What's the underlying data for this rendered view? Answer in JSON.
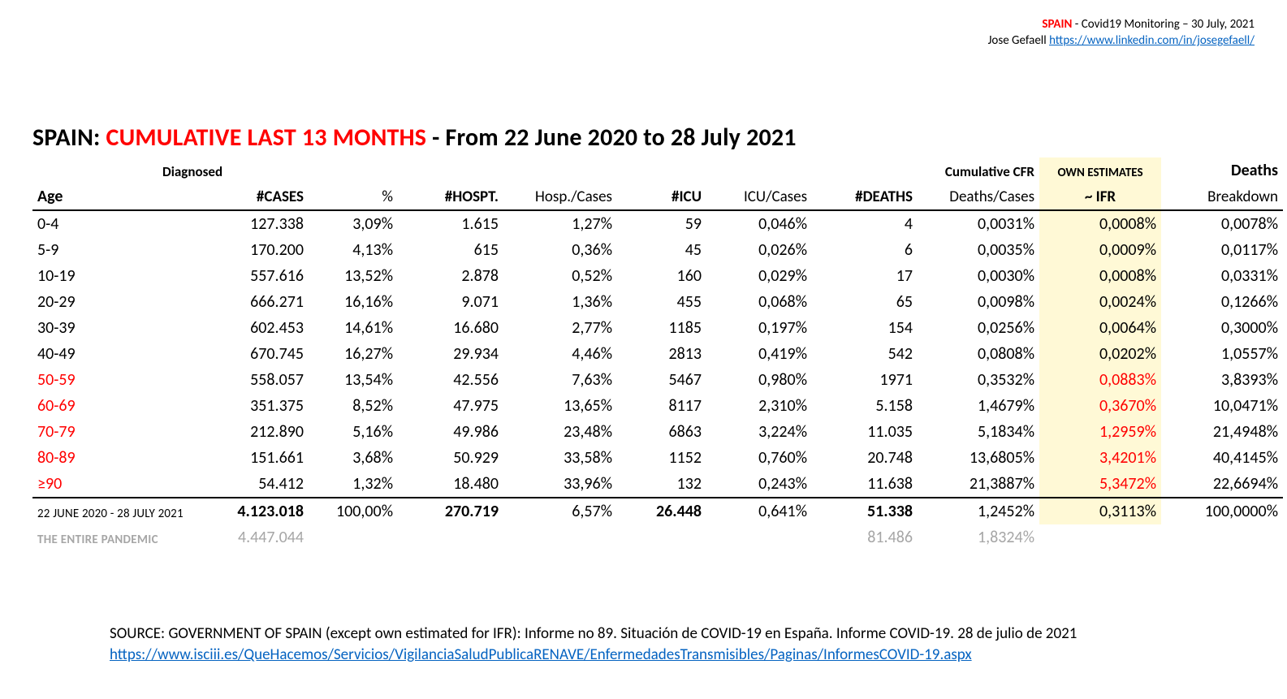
{
  "header": {
    "spain_label": "SPAIN",
    "monitoring": " - Covid19 Monitoring – 30 July, 2021",
    "author": "Jose Gefaell ",
    "link_text": "https://www.linkedin.com/in/josegefaell/"
  },
  "title": {
    "prefix": "SPAIN: ",
    "red": "CUMULATIVE LAST 13 MONTHS",
    "suffix": " - From 22 June 2020 to 28 July 2021"
  },
  "table": {
    "super_headers": {
      "diagnosed": "Diagnosed",
      "cumulative_cfr": "Cumulative CFR",
      "own_estimates": "OWN ESTIMATES",
      "deaths": "Deaths"
    },
    "columns": {
      "age": "Age",
      "cases": "#CASES",
      "pct": "%",
      "hospt": "#HOSPT.",
      "hosp_cases": "Hosp./Cases",
      "icu": "#ICU",
      "icu_cases": "ICU/Cases",
      "deaths": "#DEATHS",
      "deaths_cases": "Deaths/Cases",
      "ifr": "~ IFR",
      "breakdown": "Breakdown"
    },
    "rows": [
      {
        "age": "0-4",
        "cases": "127.338",
        "pct": "3,09%",
        "hospt": "1.615",
        "hc": "1,27%",
        "icu": "59",
        "ic": "0,046%",
        "deaths": "4",
        "dc": "0,0031%",
        "ifr": "0,0008%",
        "bd": "0,0078%",
        "age_red": false,
        "ifr_red": false
      },
      {
        "age": "5-9",
        "cases": "170.200",
        "pct": "4,13%",
        "hospt": "615",
        "hc": "0,36%",
        "icu": "45",
        "ic": "0,026%",
        "deaths": "6",
        "dc": "0,0035%",
        "ifr": "0,0009%",
        "bd": "0,0117%",
        "age_red": false,
        "ifr_red": false
      },
      {
        "age": "10-19",
        "cases": "557.616",
        "pct": "13,52%",
        "hospt": "2.878",
        "hc": "0,52%",
        "icu": "160",
        "ic": "0,029%",
        "deaths": "17",
        "dc": "0,0030%",
        "ifr": "0,0008%",
        "bd": "0,0331%",
        "age_red": false,
        "ifr_red": false
      },
      {
        "age": "20-29",
        "cases": "666.271",
        "pct": "16,16%",
        "hospt": "9.071",
        "hc": "1,36%",
        "icu": "455",
        "ic": "0,068%",
        "deaths": "65",
        "dc": "0,0098%",
        "ifr": "0,0024%",
        "bd": "0,1266%",
        "age_red": false,
        "ifr_red": false
      },
      {
        "age": "30-39",
        "cases": "602.453",
        "pct": "14,61%",
        "hospt": "16.680",
        "hc": "2,77%",
        "icu": "1185",
        "ic": "0,197%",
        "deaths": "154",
        "dc": "0,0256%",
        "ifr": "0,0064%",
        "bd": "0,3000%",
        "age_red": false,
        "ifr_red": false
      },
      {
        "age": "40-49",
        "cases": "670.745",
        "pct": "16,27%",
        "hospt": "29.934",
        "hc": "4,46%",
        "icu": "2813",
        "ic": "0,419%",
        "deaths": "542",
        "dc": "0,0808%",
        "ifr": "0,0202%",
        "bd": "1,0557%",
        "age_red": false,
        "ifr_red": false
      },
      {
        "age": "50-59",
        "cases": "558.057",
        "pct": "13,54%",
        "hospt": "42.556",
        "hc": "7,63%",
        "icu": "5467",
        "ic": "0,980%",
        "deaths": "1971",
        "dc": "0,3532%",
        "ifr": "0,0883%",
        "bd": "3,8393%",
        "age_red": true,
        "ifr_red": true
      },
      {
        "age": "60-69",
        "cases": "351.375",
        "pct": "8,52%",
        "hospt": "47.975",
        "hc": "13,65%",
        "icu": "8117",
        "ic": "2,310%",
        "deaths": "5.158",
        "dc": "1,4679%",
        "ifr": "0,3670%",
        "bd": "10,0471%",
        "age_red": true,
        "ifr_red": true
      },
      {
        "age": "70-79",
        "cases": "212.890",
        "pct": "5,16%",
        "hospt": "49.986",
        "hc": "23,48%",
        "icu": "6863",
        "ic": "3,224%",
        "deaths": "11.035",
        "dc": "5,1834%",
        "ifr": "1,2959%",
        "bd": "21,4948%",
        "age_red": true,
        "ifr_red": true
      },
      {
        "age": "80-89",
        "cases": "151.661",
        "pct": "3,68%",
        "hospt": "50.929",
        "hc": "33,58%",
        "icu": "1152",
        "ic": "0,760%",
        "deaths": "20.748",
        "dc": "13,6805%",
        "ifr": "3,4201%",
        "bd": "40,4145%",
        "age_red": true,
        "ifr_red": true
      },
      {
        "age": "≥90",
        "cases": "54.412",
        "pct": "1,32%",
        "hospt": "18.480",
        "hc": "33,96%",
        "icu": "132",
        "ic": "0,243%",
        "deaths": "11.638",
        "dc": "21,3887%",
        "ifr": "5,3472%",
        "bd": "22,6694%",
        "age_red": true,
        "ifr_red": true
      }
    ],
    "totals": {
      "label": "22 JUNE 2020 - 28 JULY 2021",
      "cases": "4.123.018",
      "pct": "100,00%",
      "hospt": "270.719",
      "hc": "6,57%",
      "icu": "26.448",
      "ic": "0,641%",
      "deaths": "51.338",
      "dc": "1,2452%",
      "ifr": "0,3113%",
      "bd": "100,0000%"
    },
    "pandemic": {
      "label": "THE ENTIRE PANDEMIC",
      "cases": "4.447.044",
      "deaths": "81.486",
      "dc": "1,8324%"
    }
  },
  "source": {
    "text": "SOURCE: GOVERNMENT OF SPAIN (except own estimated for IFR): Informe no 89. Situación de COVID-19 en España. Informe COVID-19. 28 de julio de 2021",
    "link_text": "https://www.isciii.es/QueHacemos/Servicios/VigilanciaSaludPublicaRENAVE/EnfermedadesTransmisibles/Paginas/InformesCOVID-19.aspx"
  },
  "style": {
    "colors": {
      "red": "#ff0000",
      "link": "#0563c1",
      "highlight_bg": "#fff9d6",
      "grey": "#a6a6a6",
      "border": "#000000",
      "background": "#ffffff",
      "text": "#000000"
    },
    "fonts": {
      "title_size_pt": 22,
      "body_size_pt": 15,
      "small_label_pt": 11
    }
  }
}
